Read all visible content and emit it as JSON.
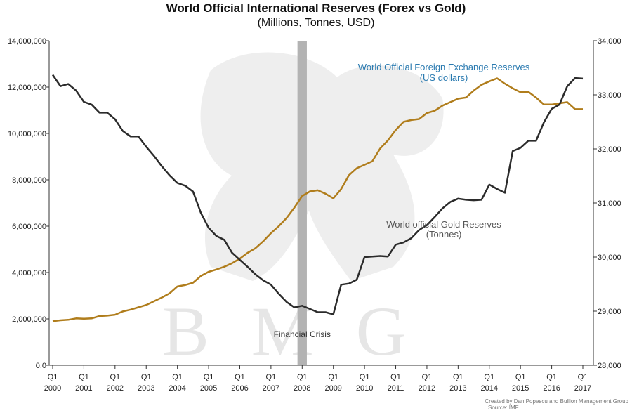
{
  "colors": {
    "forex": "#b07d1c",
    "gold": "#2b2b2b",
    "crisis_band": "#b3b3b3",
    "forex_label": "#2a7ab0",
    "axis": "#333333",
    "watermark": "#e6e6e6"
  },
  "chart_data": {
    "type": "line",
    "title": "World Official International Reserves (Forex vs Gold)",
    "subtitle": "(Millions, Tonnes, USD)",
    "x": [
      2000.0,
      2000.25,
      2000.5,
      2000.75,
      2001.0,
      2001.25,
      2001.5,
      2001.75,
      2002.0,
      2002.25,
      2002.5,
      2002.75,
      2003.0,
      2003.25,
      2003.5,
      2003.75,
      2004.0,
      2004.25,
      2004.5,
      2004.75,
      2005.0,
      2005.25,
      2005.5,
      2005.75,
      2006.0,
      2006.25,
      2006.5,
      2006.75,
      2007.0,
      2007.25,
      2007.5,
      2007.75,
      2008.0,
      2008.25,
      2008.5,
      2008.75,
      2009.0,
      2009.25,
      2009.5,
      2009.75,
      2010.0,
      2010.25,
      2010.5,
      2010.75,
      2011.0,
      2011.25,
      2011.5,
      2011.75,
      2012.0,
      2012.25,
      2012.5,
      2012.75,
      2013.0,
      2013.25,
      2013.5,
      2013.75,
      2014.0,
      2014.25,
      2014.5,
      2014.75,
      2015.0,
      2015.25,
      2015.5,
      2015.75,
      2016.0,
      2016.25,
      2016.5,
      2016.75,
      2017.0
    ],
    "series": [
      {
        "name": "World Official Foreign Exchange Reserves (US dollars)",
        "axis": "left",
        "values": [
          1900000,
          1940000,
          1960000,
          2020000,
          2010000,
          2020000,
          2120000,
          2140000,
          2180000,
          2320000,
          2400000,
          2500000,
          2600000,
          2760000,
          2920000,
          3100000,
          3400000,
          3460000,
          3560000,
          3850000,
          4030000,
          4130000,
          4250000,
          4400000,
          4600000,
          4850000,
          5050000,
          5350000,
          5700000,
          6000000,
          6350000,
          6800000,
          7300000,
          7500000,
          7550000,
          7400000,
          7200000,
          7600000,
          8200000,
          8500000,
          8650000,
          8800000,
          9350000,
          9700000,
          10150000,
          10500000,
          10580000,
          10620000,
          10880000,
          10980000,
          11200000,
          11350000,
          11500000,
          11550000,
          11850000,
          12100000,
          12250000,
          12380000,
          12150000,
          11950000,
          11780000,
          11800000,
          11550000,
          11250000,
          11250000,
          11300000,
          11350000,
          11050000,
          11050000
        ]
      },
      {
        "name": "World official Gold Reserves (Tonnes)",
        "axis": "right",
        "values": [
          33370,
          33160,
          33200,
          33080,
          32870,
          32820,
          32670,
          32670,
          32550,
          32330,
          32230,
          32230,
          32040,
          31870,
          31680,
          31510,
          31370,
          31320,
          31210,
          30820,
          30540,
          30390,
          30320,
          30080,
          29950,
          29820,
          29680,
          29570,
          29490,
          29320,
          29170,
          29070,
          29100,
          29040,
          28980,
          28980,
          28940,
          29490,
          29510,
          29580,
          30000,
          30010,
          30020,
          30010,
          30230,
          30270,
          30350,
          30500,
          30590,
          30740,
          30900,
          31020,
          31080,
          31060,
          31050,
          31060,
          31340,
          31260,
          31190,
          31960,
          32020,
          32150,
          32150,
          32490,
          32740,
          32820,
          33160,
          33310,
          33300
        ]
      }
    ],
    "x_tick_labels": [
      {
        "x": 2000,
        "q": "Q1",
        "year": "2000"
      },
      {
        "x": 2001,
        "q": "Q1",
        "year": "2001"
      },
      {
        "x": 2002,
        "q": "Q1",
        "year": "2002"
      },
      {
        "x": 2003,
        "q": "Q1",
        "year": "2003"
      },
      {
        "x": 2004,
        "q": "Q1",
        "year": "2004"
      },
      {
        "x": 2005,
        "q": "Q1",
        "year": "2005"
      },
      {
        "x": 2006,
        "q": "Q1",
        "year": "2006"
      },
      {
        "x": 2007,
        "q": "Q1",
        "year": "2007"
      },
      {
        "x": 2008,
        "q": "Q1",
        "year": "2008"
      },
      {
        "x": 2009,
        "q": "Q1",
        "year": "2009"
      },
      {
        "x": 2010,
        "q": "Q1",
        "year": "2010"
      },
      {
        "x": 2011,
        "q": "Q1",
        "year": "2011"
      },
      {
        "x": 2012,
        "q": "Q1",
        "year": "2012"
      },
      {
        "x": 2013,
        "q": "Q1",
        "year": "2013"
      },
      {
        "x": 2014,
        "q": "Q1",
        "year": "2014"
      },
      {
        "x": 2015,
        "q": "Q1",
        "year": "2015"
      },
      {
        "x": 2016,
        "q": "Q1",
        "year": "2016"
      },
      {
        "x": 2017,
        "q": "Q1",
        "year": "2017"
      }
    ],
    "xlim": [
      2000,
      2017
    ],
    "ylim_left": [
      0,
      14000000
    ],
    "ylim_right": [
      28000,
      34000
    ],
    "y_left_ticks": [
      {
        "value": 0,
        "label": "0.0"
      },
      {
        "value": 2000000,
        "label": "2,000,000"
      },
      {
        "value": 4000000,
        "label": "4,000,000"
      },
      {
        "value": 6000000,
        "label": "6,000,000"
      },
      {
        "value": 8000000,
        "label": "8,000,000"
      },
      {
        "value": 10000000,
        "label": "10,000,000"
      },
      {
        "value": 12000000,
        "label": "12,000,000"
      },
      {
        "value": 14000000,
        "label": "14,000,000"
      }
    ],
    "y_right_ticks": [
      {
        "value": 28000,
        "label": "28,000"
      },
      {
        "value": 29000,
        "label": "29,000"
      },
      {
        "value": 30000,
        "label": "30,000"
      },
      {
        "value": 31000,
        "label": "31,000"
      },
      {
        "value": 32000,
        "label": "32,000"
      },
      {
        "value": 33000,
        "label": "33,000"
      },
      {
        "value": 34000,
        "label": "34,000"
      }
    ],
    "crisis_band": {
      "start": 2007.85,
      "end": 2008.15,
      "label": "Financial Crisis"
    },
    "annotations": {
      "forex_line1": "World Official Foreign Exchange Reserves",
      "forex_line2": "(US dollars)",
      "gold_line1": "World official Gold Reserves",
      "gold_line2": "(Tonnes)"
    },
    "grid": false
  },
  "watermark": {
    "text": "BMG"
  },
  "credits": {
    "line1": "Created by Dan Popescu and Bullion Management Group",
    "line2": "Source:    IMF"
  }
}
